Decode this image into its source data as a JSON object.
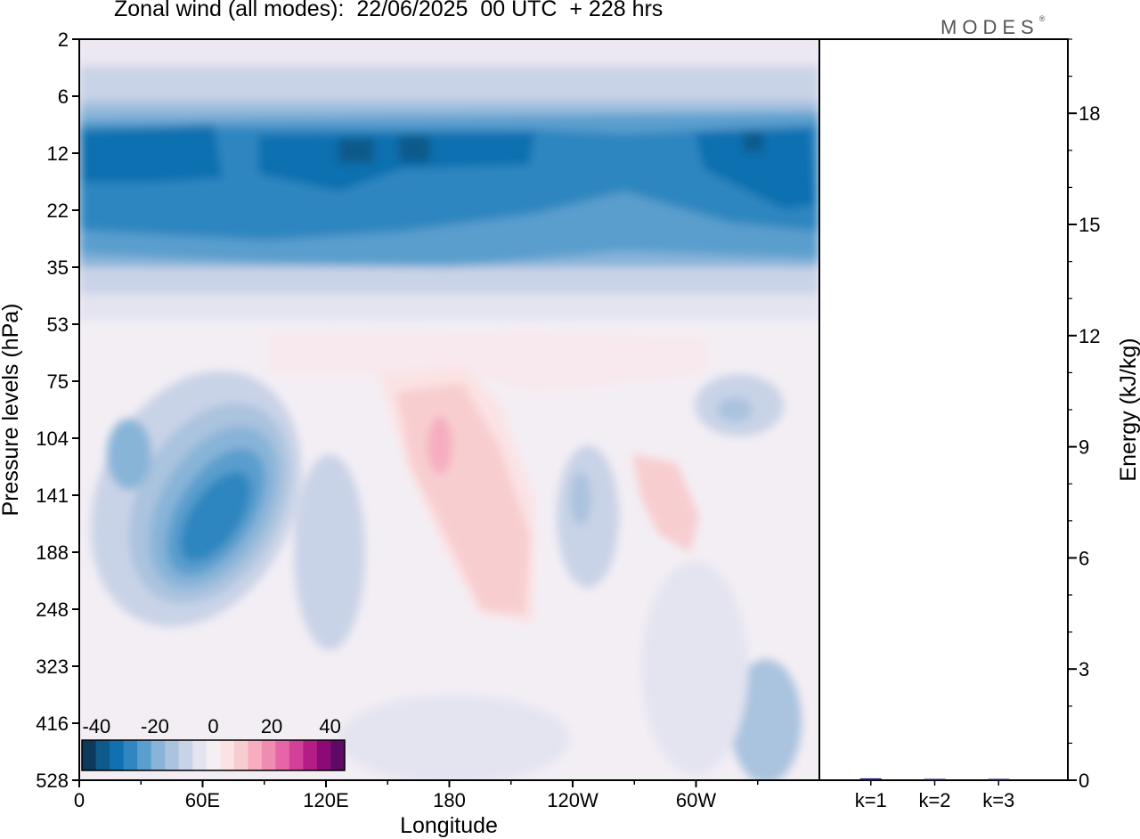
{
  "header": {
    "title": "Zonal wind (all modes):  22/06/2025  00 UTC  + 228 hrs",
    "brand": "MODES",
    "brand_mark": "®"
  },
  "colors": {
    "scale": [
      "#0b3a5c",
      "#0e5a8a",
      "#1070b0",
      "#2f86c0",
      "#5a9ecd",
      "#88b4d8",
      "#aac3de",
      "#c9d3e7",
      "#e4e4f0",
      "#f5eef3",
      "#fbe3e4",
      "#f8cdd0",
      "#f6aebf",
      "#f08bb2",
      "#e565a6",
      "#d3409a",
      "#b51d86",
      "#8c0a75",
      "#5e0a66"
    ],
    "bar": "#1a1a6e"
  },
  "chart_data": [
    {
      "type": "heatmap",
      "title": "Zonal wind (all modes):  22/06/2025  00 UTC  + 228 hrs",
      "xlabel": "Longitude",
      "ylabel": "Pressure levels (hPa)",
      "x_ticks": [
        "0",
        "60E",
        "120E",
        "180",
        "120W",
        "60W"
      ],
      "x_tick_values": [
        0,
        60,
        120,
        180,
        240,
        300
      ],
      "xlim": [
        0,
        360
      ],
      "y_ticks": [
        "2",
        "6",
        "12",
        "22",
        "35",
        "53",
        "75",
        "104",
        "141",
        "188",
        "248",
        "323",
        "416",
        "528"
      ],
      "colorbar": {
        "labels": [
          "-40",
          "-20",
          "0",
          "20",
          "40"
        ],
        "min": -45,
        "max": 45,
        "interval": 5
      },
      "features": [
        {
          "longitudes": [
            0,
            360
          ],
          "levels": [
            "12",
            "22"
          ],
          "value": -30
        },
        {
          "longitudes": [
            45,
            90
          ],
          "levels": [
            "104",
            "248"
          ],
          "value": -25
        },
        {
          "longitudes": [
            150,
            220
          ],
          "levels": [
            "75",
            "248"
          ],
          "value": 8
        },
        {
          "longitudes": [
            270,
            300
          ],
          "levels": [
            "104",
            "188"
          ],
          "value": 6
        },
        {
          "longitudes": [
            320,
            345
          ],
          "levels": [
            "323",
            "528"
          ],
          "value": -10
        }
      ]
    },
    {
      "type": "bar",
      "ylabel": "Energy (kJ/kg)",
      "categories": [
        "k=1",
        "k=2",
        "k=3"
      ],
      "values": [
        0.05,
        0.03,
        0.01
      ],
      "ylim": [
        0,
        20
      ],
      "y_ticks": [
        "0",
        "3",
        "6",
        "9",
        "12",
        "15",
        "18"
      ]
    }
  ]
}
